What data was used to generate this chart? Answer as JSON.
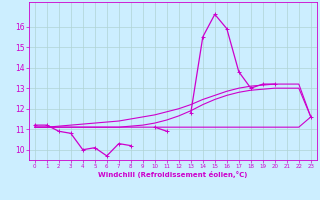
{
  "background_color": "#cceeff",
  "grid_color": "#b0d4d4",
  "line_color": "#cc00cc",
  "x_hours": [
    0,
    1,
    2,
    3,
    4,
    5,
    6,
    7,
    8,
    9,
    10,
    11,
    12,
    13,
    14,
    15,
    16,
    17,
    18,
    19,
    20,
    21,
    22,
    23
  ],
  "temp_actual": [
    11.2,
    11.2,
    10.9,
    10.8,
    10.0,
    10.1,
    9.7,
    10.3,
    10.2,
    null,
    11.1,
    10.9,
    null,
    11.8,
    15.5,
    16.6,
    15.9,
    13.8,
    13.0,
    13.2,
    13.2,
    null,
    null,
    11.6
  ],
  "temp_line1": [
    11.1,
    11.1,
    11.15,
    11.2,
    11.25,
    11.3,
    11.35,
    11.4,
    11.5,
    11.6,
    11.7,
    11.85,
    12.0,
    12.2,
    12.45,
    12.65,
    12.85,
    13.0,
    13.1,
    13.15,
    13.2,
    13.2,
    13.2,
    11.6
  ],
  "temp_line2": [
    11.1,
    11.1,
    11.1,
    11.1,
    11.1,
    11.1,
    11.1,
    11.1,
    11.15,
    11.2,
    11.3,
    11.45,
    11.65,
    11.9,
    12.2,
    12.45,
    12.65,
    12.8,
    12.9,
    12.95,
    13.0,
    13.0,
    13.0,
    11.6
  ],
  "temp_flat": [
    11.1,
    11.1,
    11.1,
    11.1,
    11.1,
    11.1,
    11.1,
    11.1,
    11.1,
    11.1,
    11.1,
    11.1,
    11.1,
    11.1,
    11.1,
    11.1,
    11.1,
    11.1,
    11.1,
    11.1,
    11.1,
    11.1,
    11.1,
    11.6
  ],
  "ylim": [
    9.5,
    17.2
  ],
  "yticks": [
    10,
    11,
    12,
    13,
    14,
    15,
    16
  ],
  "xlim": [
    -0.5,
    23.5
  ],
  "xticks": [
    0,
    1,
    2,
    3,
    4,
    5,
    6,
    7,
    8,
    9,
    10,
    11,
    12,
    13,
    14,
    15,
    16,
    17,
    18,
    19,
    20,
    21,
    22,
    23
  ],
  "xlabel": "Windchill (Refroidissement éolien,°C)"
}
